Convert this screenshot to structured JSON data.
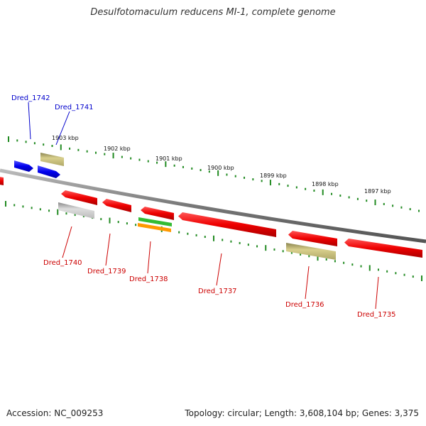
{
  "title": "Desulfotomaculum reducens MI-1, complete genome",
  "footer": {
    "accession": "Accession: NC_009253",
    "topology": "Topology: circular; Length: 3,608,104 bp; Genes: 3,375"
  },
  "colors": {
    "forward_label": "#0000cc",
    "reverse_label": "#cc0000",
    "tick": "#228b22",
    "backbone": "#888888"
  },
  "kbp_labels": [
    "1903 kbp",
    "1902 kbp",
    "1901 kbp",
    "1900 kbp",
    "1899 kbp",
    "1898 kbp",
    "1897 kbp"
  ],
  "genes": [
    {
      "label": "Dred_1742",
      "strand": "forward"
    },
    {
      "label": "Dred_1741",
      "strand": "forward"
    },
    {
      "label": "Dred_1740",
      "strand": "reverse"
    },
    {
      "label": "Dred_1739",
      "strand": "reverse"
    },
    {
      "label": "Dred_1738",
      "strand": "reverse"
    },
    {
      "label": "Dred_1737",
      "strand": "reverse"
    },
    {
      "label": "Dred_1736",
      "strand": "reverse"
    },
    {
      "label": "Dred_1735",
      "strand": "reverse"
    }
  ]
}
